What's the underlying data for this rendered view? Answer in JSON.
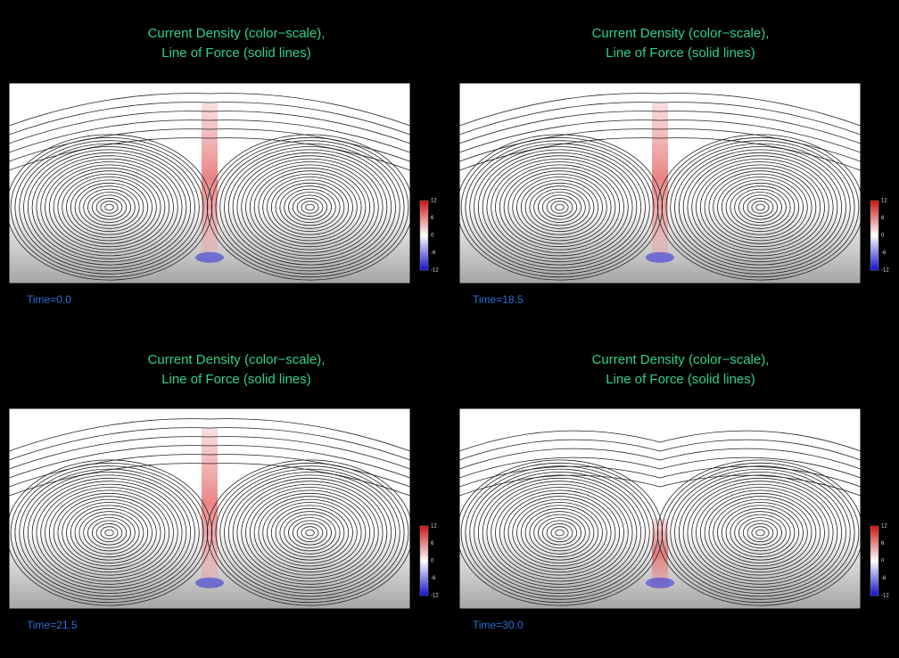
{
  "panels": [
    {
      "title_lines": [
        "Current Density (color−scale),",
        "Line of Force (solid lines)"
      ],
      "time": "Time=0.0",
      "colorbar_ticks": [
        12,
        6,
        0,
        -6,
        -12
      ]
    },
    {
      "title_lines": [
        "Current Density (color−scale),",
        "Line of Force (solid lines)"
      ],
      "time": "Time=18.5",
      "colorbar_ticks": [
        12,
        6,
        0,
        -6,
        -12
      ]
    },
    {
      "title_lines": [
        "Current Density (color−scale),",
        "Line of Force (solid lines)"
      ],
      "time": "Time=21.5",
      "colorbar_ticks": [
        12,
        6,
        0,
        -6,
        -12
      ]
    },
    {
      "title_lines": [
        "Current Density (color−scale),",
        "Line of Force (solid lines)"
      ],
      "time": "Time=30.0",
      "colorbar_ticks": [
        12,
        6,
        0,
        -6,
        -12
      ]
    }
  ]
}
